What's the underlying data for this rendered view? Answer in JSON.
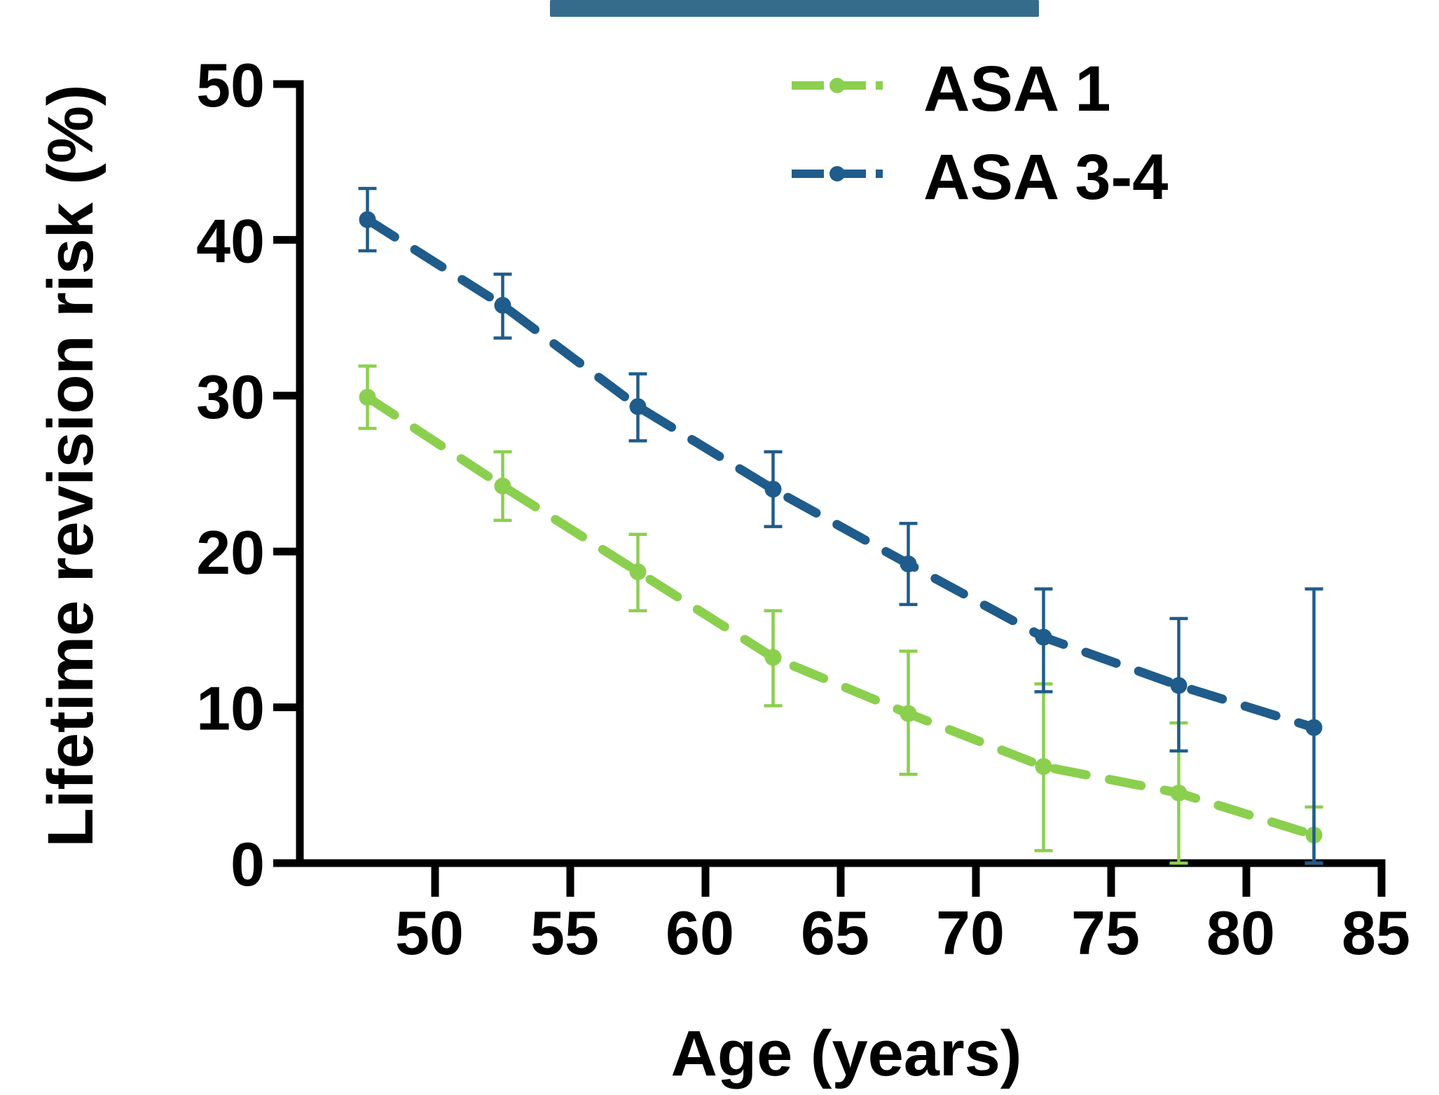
{
  "colors": {
    "asa1": "#8BCF4F",
    "asa34": "#1F5C8B",
    "top_bar": "#356C8C",
    "axis": "#000000"
  },
  "chart_data": {
    "type": "line",
    "title": "",
    "xlabel": "Age (years)",
    "ylabel": "Lifetime revision risk (%)",
    "xlim": [
      45,
      85
    ],
    "ylim": [
      0,
      50
    ],
    "x_ticks": [
      50,
      55,
      60,
      65,
      70,
      75,
      80,
      85
    ],
    "x_tick_labels": [
      "50",
      "55",
      "60",
      "65",
      "70",
      "75",
      "80",
      "85"
    ],
    "y_ticks": [
      0,
      10,
      20,
      30,
      40,
      50
    ],
    "y_tick_labels": [
      "0",
      "10",
      "20",
      "30",
      "40",
      "50"
    ],
    "legend_position": "top-right",
    "line_style": "dashed",
    "grid": false,
    "series": [
      {
        "name": "ASA 1",
        "color": "#8BCF4F",
        "points": [
          {
            "x": 47.5,
            "y": 29.9,
            "lo": 27.9,
            "hi": 31.9
          },
          {
            "x": 52.5,
            "y": 24.2,
            "lo": 22.0,
            "hi": 26.4
          },
          {
            "x": 57.5,
            "y": 18.7,
            "lo": 16.2,
            "hi": 21.1
          },
          {
            "x": 62.5,
            "y": 13.2,
            "lo": 10.1,
            "hi": 16.2
          },
          {
            "x": 67.5,
            "y": 9.6,
            "lo": 5.7,
            "hi": 13.6
          },
          {
            "x": 72.5,
            "y": 6.2,
            "lo": 0.8,
            "hi": 11.5
          },
          {
            "x": 77.5,
            "y": 4.5,
            "lo": 0.0,
            "hi": 9.0
          },
          {
            "x": 82.5,
            "y": 1.8,
            "lo": 0.0,
            "hi": 3.6
          }
        ]
      },
      {
        "name": "ASA 3-4",
        "color": "#1F5C8B",
        "points": [
          {
            "x": 47.5,
            "y": 41.3,
            "lo": 39.3,
            "hi": 43.3
          },
          {
            "x": 52.5,
            "y": 35.8,
            "lo": 33.7,
            "hi": 37.8
          },
          {
            "x": 57.5,
            "y": 29.3,
            "lo": 27.1,
            "hi": 31.4
          },
          {
            "x": 62.5,
            "y": 24.0,
            "lo": 21.6,
            "hi": 26.4
          },
          {
            "x": 67.5,
            "y": 19.2,
            "lo": 16.6,
            "hi": 21.8
          },
          {
            "x": 72.5,
            "y": 14.5,
            "lo": 11.0,
            "hi": 17.6
          },
          {
            "x": 77.5,
            "y": 11.4,
            "lo": 7.2,
            "hi": 15.7
          },
          {
            "x": 82.5,
            "y": 8.7,
            "lo": 0.0,
            "hi": 17.6
          }
        ]
      }
    ]
  }
}
